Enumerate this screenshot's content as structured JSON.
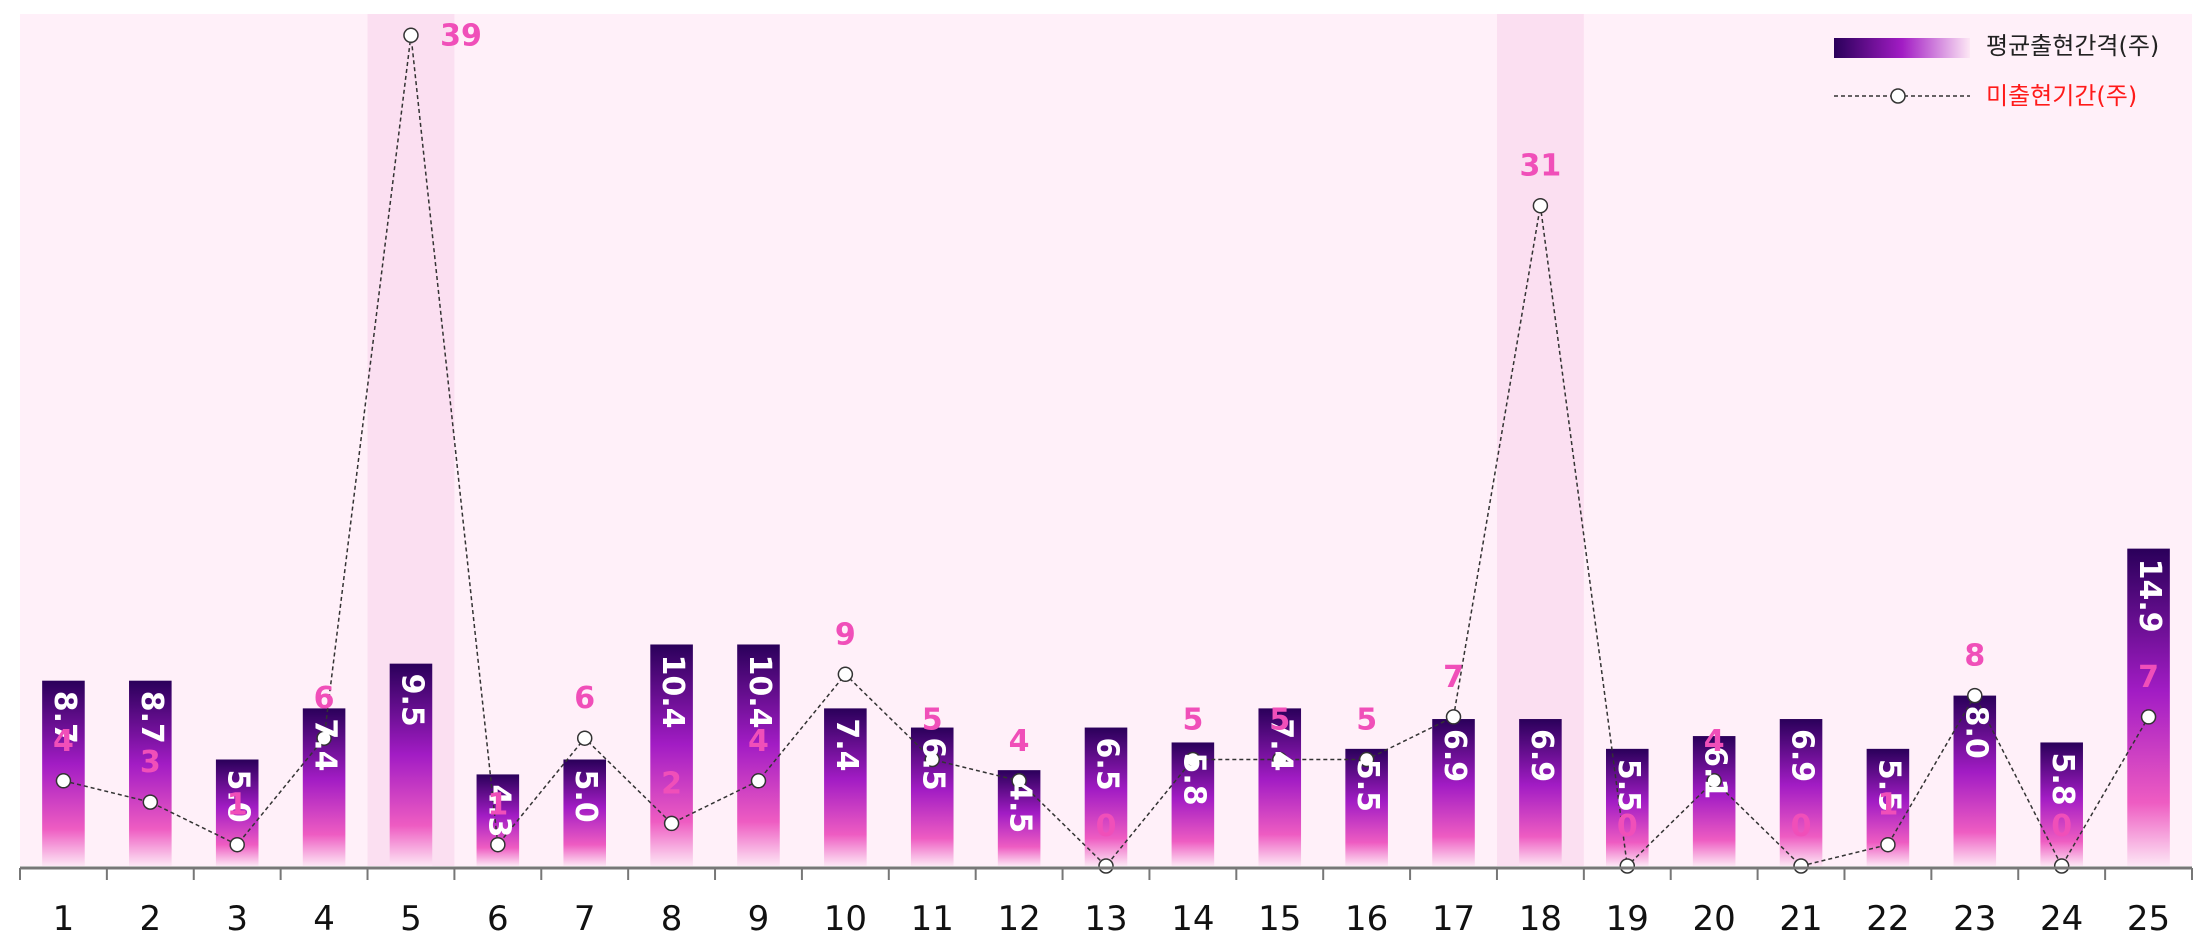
{
  "chart_data": {
    "type": "bar",
    "categories": [
      "1",
      "2",
      "3",
      "4",
      "5",
      "6",
      "7",
      "8",
      "9",
      "10",
      "11",
      "12",
      "13",
      "14",
      "15",
      "16",
      "17",
      "18",
      "19",
      "20",
      "21",
      "22",
      "23",
      "24",
      "25"
    ],
    "series": [
      {
        "name": "평균출현간격(주)",
        "type": "bar",
        "values": [
          8.7,
          8.7,
          5.0,
          7.4,
          9.5,
          4.3,
          5.0,
          10.4,
          10.4,
          7.4,
          6.5,
          4.5,
          6.5,
          5.8,
          7.4,
          5.5,
          6.9,
          6.9,
          5.5,
          6.1,
          6.9,
          5.5,
          8.0,
          5.8,
          14.9
        ]
      },
      {
        "name": "미출현기간(주)",
        "type": "line",
        "values": [
          4,
          3,
          1,
          6,
          39,
          1,
          6,
          2,
          4,
          9,
          5,
          4,
          0,
          5,
          5,
          5,
          7,
          31,
          0,
          4,
          0,
          1,
          8,
          0,
          7
        ]
      }
    ],
    "highlighted_categories": [
      "5",
      "18"
    ],
    "xlabel": "",
    "ylabel": "",
    "ylim": [
      0,
      40
    ],
    "grid": false,
    "legend_position": "top-right",
    "colors": {
      "plot_background": "#fff0f9",
      "highlight_band": "#fbdff1",
      "bar_top": "#2a005a",
      "bar_mid": "#a21cc4",
      "bar_bottom": "#fde7f5",
      "line": "#333333",
      "miss_label": "#f04fb9",
      "legend_line_label": "#ff1a1a"
    }
  }
}
